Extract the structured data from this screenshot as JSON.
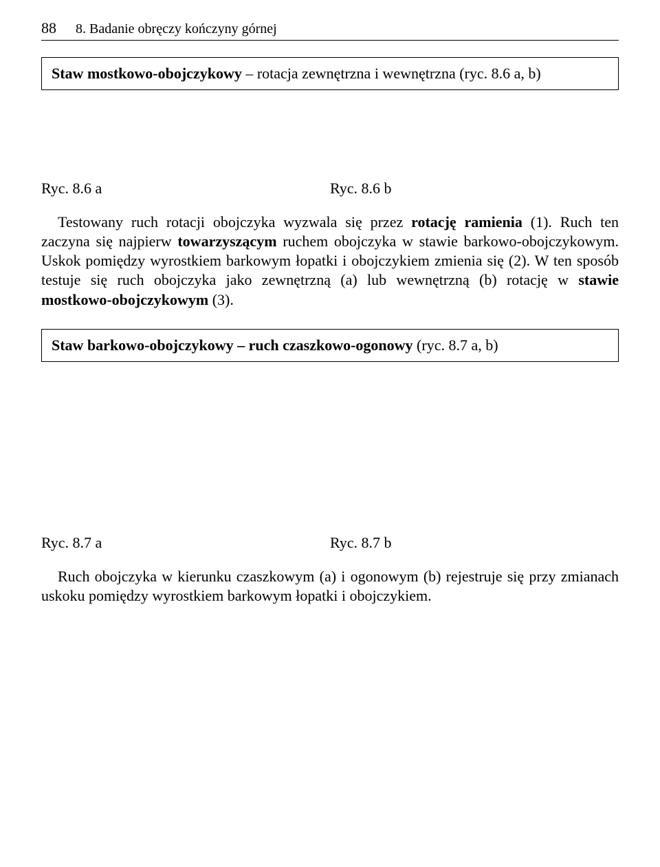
{
  "header": {
    "page_number": "88",
    "chapter": "8. Badanie obręczy kończyny górnej"
  },
  "section1": {
    "title_bold": "Staw mostkowo-obojczykowy",
    "title_rest": " – rotacja zewnętrzna i wewnętrzna (ryc. 8.6 a, b)"
  },
  "fig1": {
    "left": "Ryc. 8.6 a",
    "right": "Ryc. 8.6 b"
  },
  "para1": {
    "prefix": "Testowany ruch rotacji obojczyka wyzwala się przez ",
    "bold1": "rotację ramienia",
    "mid1": " (1). Ruch ten zaczyna się najpierw ",
    "bold2": "towarzyszącym",
    "mid2": " ruchem obojczyka w stawie barkowo-obojczykowym. Uskok pomiędzy wyrostkiem barkowym łopatki i obojczykiem zmienia się (2). W ten sposób testuje się ruch obojczyka jako zewnętrzną (a) lub wewnętrzną (b) rotację w ",
    "bold3": "stawie mostkowo-obojczykowym",
    "suffix": " (3)."
  },
  "section2": {
    "title_bold": "Staw barkowo-obojczykowy – ruch czaszkowo-ogonowy",
    "title_rest": " (ryc. 8.7 a, b)"
  },
  "fig2": {
    "left": "Ryc. 8.7 a",
    "right": "Ryc. 8.7 b"
  },
  "para2": {
    "text": "Ruch obojczyka w kierunku czaszkowym (a) i ogonowym (b) rejestruje się przy zmianach uskoku pomiędzy wyrostkiem barkowym łopatki i obojczykiem."
  }
}
